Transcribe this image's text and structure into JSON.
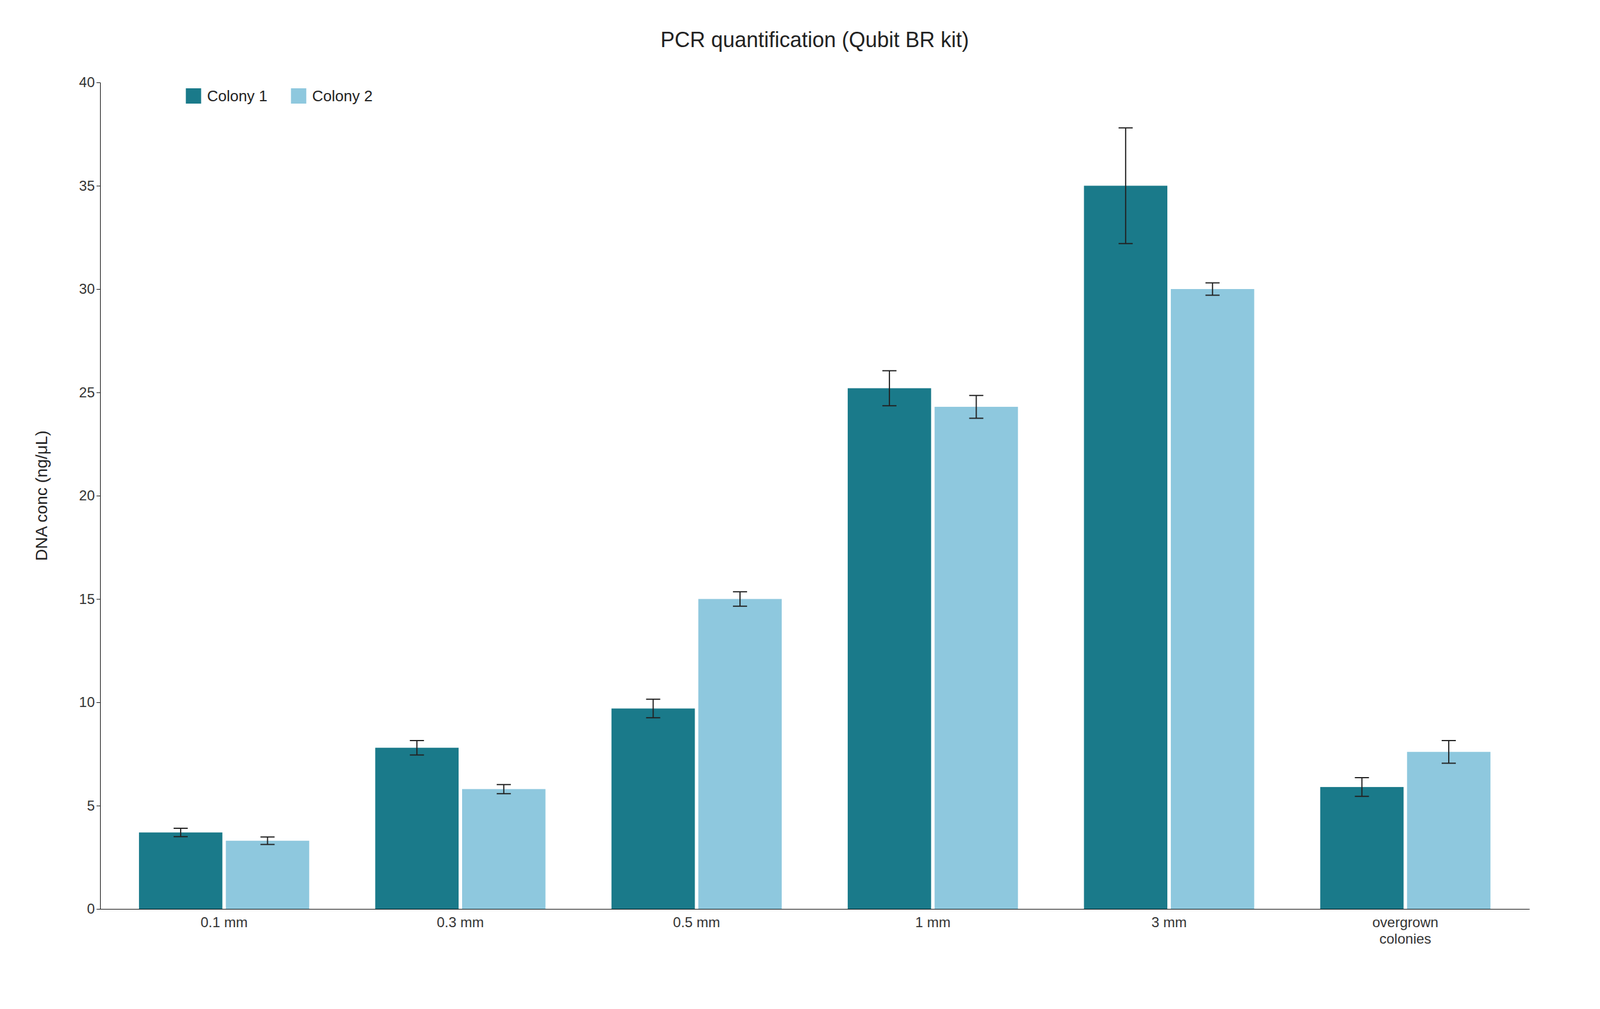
{
  "chart_data": {
    "type": "bar",
    "title": "PCR quantification (Qubit BR kit)",
    "ylabel": "DNA conc (ng/μL)",
    "categories": [
      "0.1 mm",
      "0.3 mm",
      "0.5 mm",
      "1 mm",
      "3 mm",
      "overgrown\ncolonies"
    ],
    "series": [
      {
        "name": "Colony 1",
        "color": "#1a7a8a",
        "values": [
          3.7,
          7.8,
          9.7,
          25.2,
          35.0,
          5.9
        ],
        "errors": [
          0.2,
          0.35,
          0.45,
          0.85,
          2.8,
          0.45
        ]
      },
      {
        "name": "Colony 2",
        "color": "#8ec8de",
        "values": [
          3.3,
          5.8,
          15.0,
          24.3,
          30.0,
          7.6
        ],
        "errors": [
          0.18,
          0.22,
          0.35,
          0.55,
          0.3,
          0.55
        ]
      }
    ],
    "ylim": [
      0,
      40
    ],
    "yticks": [
      0,
      5,
      10,
      15,
      20,
      25,
      30,
      35,
      40
    ],
    "grid": false,
    "legend": "upper left"
  }
}
